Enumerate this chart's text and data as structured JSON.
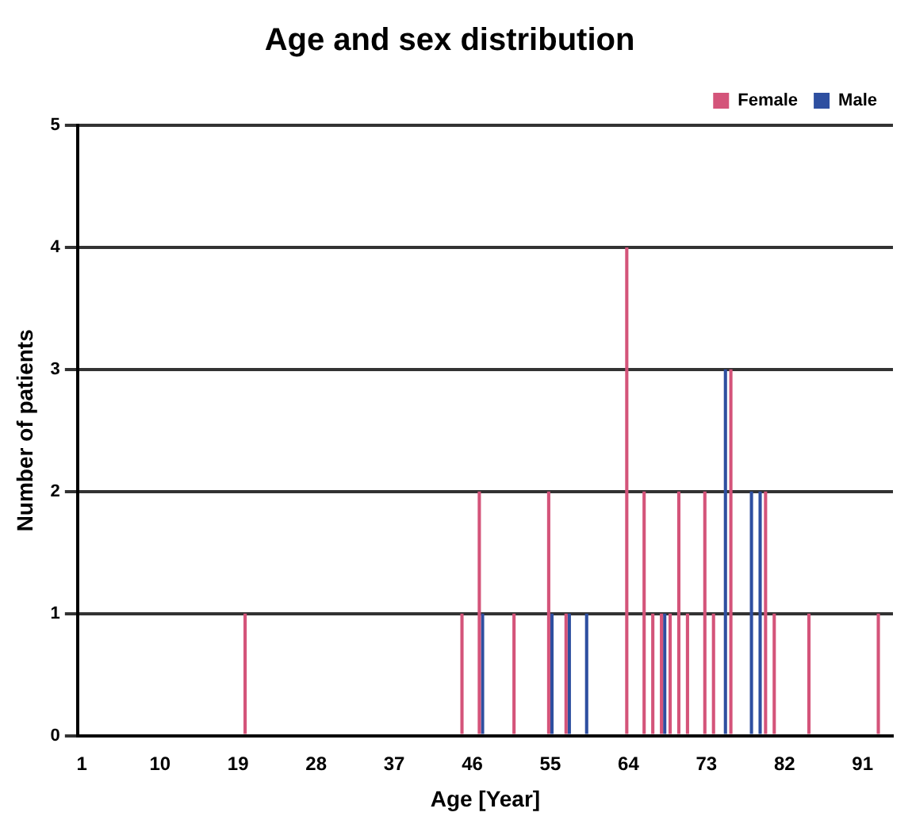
{
  "chart_data": {
    "type": "bar",
    "title": "Age and sex distribution",
    "xlabel": "Age [Year]",
    "ylabel": "Number of patients",
    "categories": [
      "1",
      null,
      null,
      null,
      null,
      null,
      null,
      null,
      null,
      "10",
      null,
      null,
      null,
      null,
      null,
      null,
      null,
      null,
      "19",
      null,
      null,
      null,
      null,
      null,
      null,
      null,
      null,
      "28",
      null,
      null,
      null,
      null,
      null,
      null,
      null,
      null,
      "37",
      null,
      null,
      null,
      null,
      null,
      null,
      null,
      null,
      "46",
      null,
      null,
      null,
      null,
      null,
      null,
      null,
      null,
      "55",
      null,
      null,
      null,
      null,
      null,
      null,
      null,
      null,
      "64",
      null,
      null,
      null,
      null,
      null,
      null,
      null,
      null,
      "73",
      null,
      null,
      null,
      null,
      null,
      null,
      null,
      null,
      "82",
      null,
      null,
      null,
      null,
      null,
      null,
      null,
      null,
      "91",
      null,
      null,
      null
    ],
    "series": [
      {
        "name": "Female",
        "color": "#d4547a",
        "values": [
          0,
          0,
          0,
          0,
          0,
          0,
          0,
          0,
          0,
          0,
          0,
          0,
          0,
          0,
          0,
          0,
          0,
          0,
          0,
          1,
          0,
          0,
          0,
          0,
          0,
          0,
          0,
          0,
          0,
          0,
          0,
          0,
          0,
          0,
          0,
          0,
          0,
          0,
          0,
          0,
          0,
          0,
          0,
          0,
          1,
          0,
          2,
          0,
          0,
          0,
          1,
          0,
          0,
          0,
          2,
          0,
          1,
          0,
          0,
          0,
          0,
          0,
          0,
          4,
          0,
          2,
          1,
          1,
          1,
          2,
          1,
          0,
          2,
          1,
          0,
          3,
          0,
          0,
          0,
          2,
          1,
          0,
          0,
          0,
          1,
          0,
          0,
          0,
          0,
          0,
          0,
          0,
          1,
          0
        ]
      },
      {
        "name": "Male",
        "color": "#2e4fa0",
        "values": [
          0,
          0,
          0,
          0,
          0,
          0,
          0,
          0,
          0,
          0,
          0,
          0,
          0,
          0,
          0,
          0,
          0,
          0,
          0,
          0,
          0,
          0,
          0,
          0,
          0,
          0,
          0,
          0,
          0,
          0,
          0,
          0,
          0,
          0,
          0,
          0,
          0,
          0,
          0,
          0,
          0,
          0,
          0,
          0,
          0,
          0,
          1,
          0,
          0,
          0,
          0,
          0,
          0,
          0,
          1,
          0,
          1,
          0,
          1,
          0,
          0,
          0,
          0,
          0,
          0,
          0,
          0,
          1,
          0,
          0,
          0,
          0,
          0,
          0,
          3,
          0,
          0,
          2,
          2,
          0,
          0,
          0,
          0,
          0,
          0,
          0,
          0,
          0,
          0,
          0,
          0,
          0,
          0,
          0
        ]
      }
    ],
    "ylim": [
      0,
      5
    ],
    "yticks": [
      0,
      1,
      2,
      3,
      4,
      5
    ],
    "grid": "y",
    "legend": "top right"
  }
}
